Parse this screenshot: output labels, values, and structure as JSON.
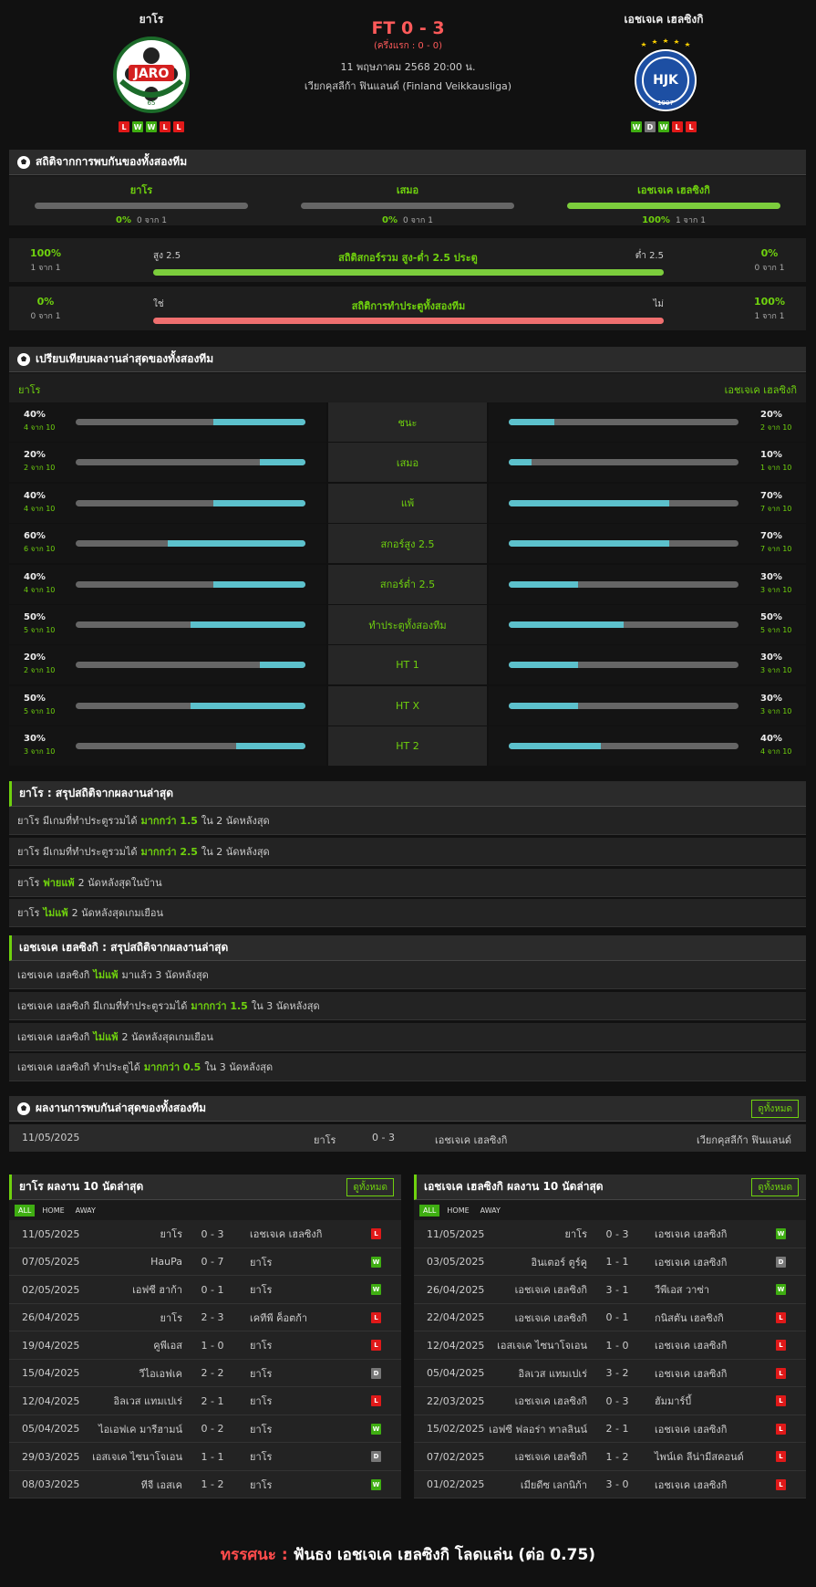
{
  "match": {
    "home_team": "ยาโร",
    "away_team": "เอชเจเค เฮลซิงกิ",
    "result": "FT 0 - 3",
    "halftime": "(ครึ่งแรก : 0 - 0)",
    "datetime": "11 พฤษภาคม 2568 20:00 น.",
    "league": "เวียกคุสลีก้า ฟินแลนด์ (Finland Veikkausliga)",
    "home_form": [
      "L",
      "W",
      "W",
      "L",
      "L"
    ],
    "away_form": [
      "W",
      "D",
      "W",
      "L",
      "L"
    ],
    "home_logo_text": "JARO",
    "home_logo_year": "65",
    "away_logo_text": "HJK",
    "away_logo_year": "1907"
  },
  "h2h_stats": {
    "title": "สถิติจากการพบกันของทั้งสองทีม",
    "cols": [
      {
        "label": "ยาโร",
        "pct": "0%",
        "count": "0 จาก 1",
        "fill": 0
      },
      {
        "label": "เสมอ",
        "pct": "0%",
        "count": "0 จาก 1",
        "fill": 0
      },
      {
        "label": "เอชเจเค เฮลซิงกิ",
        "pct": "100%",
        "count": "1 จาก 1",
        "fill": 1
      }
    ],
    "over_under": {
      "left_pct": "100%",
      "left_count": "1 จาก 1",
      "left_label": "สูง 2.5",
      "center_label": "สถิติสกอร์รวม สูง-ต่ำ 2.5 ประตู",
      "right_label": "ต่ำ 2.5",
      "right_pct": "0%",
      "right_count": "0 จาก 1"
    },
    "btts": {
      "left_pct": "0%",
      "left_count": "0 จาก 1",
      "left_label": "ใช่",
      "center_label": "สถิติการทำประตูทั้งสองทีม",
      "right_label": "ไม่",
      "right_pct": "100%",
      "right_count": "1 จาก 1"
    }
  },
  "compare": {
    "title": "เปรียบเทียบผลงานล่าสุดของทั้งสองทีม",
    "home_label": "ยาโร",
    "away_label": "เอชเจเค เฮลซิงกิ",
    "rows": [
      {
        "label": "ชนะ",
        "home_pct": "40%",
        "home_count": "4 จาก 10",
        "home_val": 0.4,
        "away_pct": "20%",
        "away_count": "2 จาก 10",
        "away_val": 0.2
      },
      {
        "label": "เสมอ",
        "home_pct": "20%",
        "home_count": "2 จาก 10",
        "home_val": 0.2,
        "away_pct": "10%",
        "away_count": "1 จาก 10",
        "away_val": 0.1
      },
      {
        "label": "แพ้",
        "home_pct": "40%",
        "home_count": "4 จาก 10",
        "home_val": 0.4,
        "away_pct": "70%",
        "away_count": "7 จาก 10",
        "away_val": 0.7
      },
      {
        "label": "สกอร์สูง 2.5",
        "home_pct": "60%",
        "home_count": "6 จาก 10",
        "home_val": 0.6,
        "away_pct": "70%",
        "away_count": "7 จาก 10",
        "away_val": 0.7
      },
      {
        "label": "สกอร์ต่ำ 2.5",
        "home_pct": "40%",
        "home_count": "4 จาก 10",
        "home_val": 0.4,
        "away_pct": "30%",
        "away_count": "3 จาก 10",
        "away_val": 0.3
      },
      {
        "label": "ทำประตูทั้งสองทีม",
        "home_pct": "50%",
        "home_count": "5 จาก 10",
        "home_val": 0.5,
        "away_pct": "50%",
        "away_count": "5 จาก 10",
        "away_val": 0.5
      },
      {
        "label": "HT 1",
        "home_pct": "20%",
        "home_count": "2 จาก 10",
        "home_val": 0.2,
        "away_pct": "30%",
        "away_count": "3 จาก 10",
        "away_val": 0.3
      },
      {
        "label": "HT X",
        "home_pct": "50%",
        "home_count": "5 จาก 10",
        "home_val": 0.5,
        "away_pct": "30%",
        "away_count": "3 จาก 10",
        "away_val": 0.3
      },
      {
        "label": "HT 2",
        "home_pct": "30%",
        "home_count": "3 จาก 10",
        "home_val": 0.3,
        "away_pct": "40%",
        "away_count": "4 จาก 10",
        "away_val": 0.4
      }
    ]
  },
  "home_summary": {
    "title": "ยาโร : สรุปสถิติจากผลงานล่าสุด",
    "rows": [
      {
        "a": "ยาโร  มีเกมที่ทำประตูรวมได้",
        "b": "มากกว่า  1.5",
        "c": "ใน 2 นัดหลังสุด"
      },
      {
        "a": "ยาโร  มีเกมที่ทำประตูรวมได้",
        "b": "มากกว่า  2.5",
        "c": "ใน 2 นัดหลังสุด"
      },
      {
        "a": "ยาโร",
        "b": "พ่ายแพ้",
        "c": "2  นัดหลังสุดในบ้าน"
      },
      {
        "a": "ยาโร",
        "b": "ไม่แพ้",
        "c": "2  นัดหลังสุดเกมเยือน"
      }
    ]
  },
  "away_summary": {
    "title": "เอชเจเค เฮลซิงกิ : สรุปสถิติจากผลงานล่าสุด",
    "rows": [
      {
        "a": "เอชเจเค เฮลซิงกิ",
        "b": "ไม่แพ้",
        "c": "มาแล้ว 3 นัดหลังสุด"
      },
      {
        "a": "เอชเจเค เฮลซิงกิ  มีเกมที่ทำประตูรวมได้",
        "b": "มากกว่า  1.5",
        "c": "ใน 3 นัดหลังสุด"
      },
      {
        "a": "เอชเจเค เฮลซิงกิ",
        "b": "ไม่แพ้",
        "c": "2  นัดหลังสุดเกมเยือน"
      },
      {
        "a": "เอชเจเค เฮลซิงกิ  ทำประตูได้",
        "b": "มากกว่า  0.5",
        "c": "ใน 3 นัดหลังสุด"
      }
    ]
  },
  "h2h_results": {
    "title": "ผลงานการพบกันล่าสุดของทั้งสองทีม",
    "view_all": "ดูทั้งหมด",
    "rows": [
      {
        "date": "11/05/2025",
        "home": "ยาโร",
        "score": "0 - 3",
        "away": "เอชเจเค เฮลซิงกิ",
        "league": "เวียกคุสลีก้า ฟินแลนด์"
      }
    ]
  },
  "home_last10": {
    "title": "ยาโร ผลงาน 10 นัดล่าสุด",
    "view_all": "ดูทั้งหมด",
    "tabs": [
      "ALL",
      "HOME",
      "AWAY"
    ],
    "rows": [
      {
        "date": "11/05/2025",
        "home": "ยาโร",
        "score": "0 - 3",
        "away": "เอชเจเค เฮลซิงกิ",
        "res": "L"
      },
      {
        "date": "07/05/2025",
        "home": "HauPa",
        "score": "0 - 7",
        "away": "ยาโร",
        "res": "W"
      },
      {
        "date": "02/05/2025",
        "home": "เอฟซี ฮาก้า",
        "score": "0 - 1",
        "away": "ยาโร",
        "res": "W"
      },
      {
        "date": "26/04/2025",
        "home": "ยาโร",
        "score": "2 - 3",
        "away": "เคทีพี ค็อตก้า",
        "res": "L"
      },
      {
        "date": "19/04/2025",
        "home": "คูพีเอส",
        "score": "1 - 0",
        "away": "ยาโร",
        "res": "L"
      },
      {
        "date": "15/04/2025",
        "home": "วีไอเอฟเค",
        "score": "2 - 2",
        "away": "ยาโร",
        "res": "D"
      },
      {
        "date": "12/04/2025",
        "home": "อิลเวส แทมเปเร่",
        "score": "2 - 1",
        "away": "ยาโร",
        "res": "L"
      },
      {
        "date": "05/04/2025",
        "home": "ไอเอฟเค มารีฮามน์",
        "score": "0 - 2",
        "away": "ยาโร",
        "res": "W"
      },
      {
        "date": "29/03/2025",
        "home": "เอสเจเค ไซนาโจเอน",
        "score": "1 - 1",
        "away": "ยาโร",
        "res": "D"
      },
      {
        "date": "08/03/2025",
        "home": "ทีจี เอสเค",
        "score": "1 - 2",
        "away": "ยาโร",
        "res": "W"
      }
    ]
  },
  "away_last10": {
    "title": "เอชเจเค เฮลซิงกิ ผลงาน 10 นัดล่าสุด",
    "view_all": "ดูทั้งหมด",
    "tabs": [
      "ALL",
      "HOME",
      "AWAY"
    ],
    "rows": [
      {
        "date": "11/05/2025",
        "home": "ยาโร",
        "score": "0 - 3",
        "away": "เอชเจเค เฮลซิงกิ",
        "res": "W"
      },
      {
        "date": "03/05/2025",
        "home": "อินเตอร์ ตูร์คู",
        "score": "1 - 1",
        "away": "เอชเจเค เฮลซิงกิ",
        "res": "D"
      },
      {
        "date": "26/04/2025",
        "home": "เอชเจเค เฮลซิงกิ",
        "score": "3 - 1",
        "away": "วีพีเอส วาซ่า",
        "res": "W"
      },
      {
        "date": "22/04/2025",
        "home": "เอชเจเค เฮลซิงกิ",
        "score": "0 - 1",
        "away": "กนิสตัน เฮลซิงกิ",
        "res": "L"
      },
      {
        "date": "12/04/2025",
        "home": "เอสเจเค ไซนาโจเอน",
        "score": "1 - 0",
        "away": "เอชเจเค เฮลซิงกิ",
        "res": "L"
      },
      {
        "date": "05/04/2025",
        "home": "อิลเวส แทมเปเร่",
        "score": "3 - 2",
        "away": "เอชเจเค เฮลซิงกิ",
        "res": "L"
      },
      {
        "date": "22/03/2025",
        "home": "เอชเจเค เฮลซิงกิ",
        "score": "0 - 3",
        "away": "ฮัมมาร์บี้",
        "res": "L"
      },
      {
        "date": "15/02/2025",
        "home": "เอฟซี ฟลอร่า ทาลลินน์",
        "score": "2 - 1",
        "away": "เอชเจเค เฮลซิงกิ",
        "res": "L"
      },
      {
        "date": "07/02/2025",
        "home": "เอชเจเค เฮลซิงกิ",
        "score": "1 - 2",
        "away": "ไพน์เด ลีน่ามีสคอนด์",
        "res": "L"
      },
      {
        "date": "01/02/2025",
        "home": "เมียดีซ เลกนิก้า",
        "score": "3 - 0",
        "away": "เอชเจเค เฮลซิงกิ",
        "res": "L"
      }
    ]
  },
  "verdict": {
    "label": "ทรรศนะ :",
    "text": "ฟันธง เอชเจเค เฮลซิงกิ โลดแล่น (ต่อ 0.75)"
  },
  "colors": {
    "accent": "#6fd10e",
    "loss": "#e01919",
    "bar_cyan": "#5cc1cc",
    "bar_green": "#7ccd3c",
    "bar_red": "#f07070"
  }
}
